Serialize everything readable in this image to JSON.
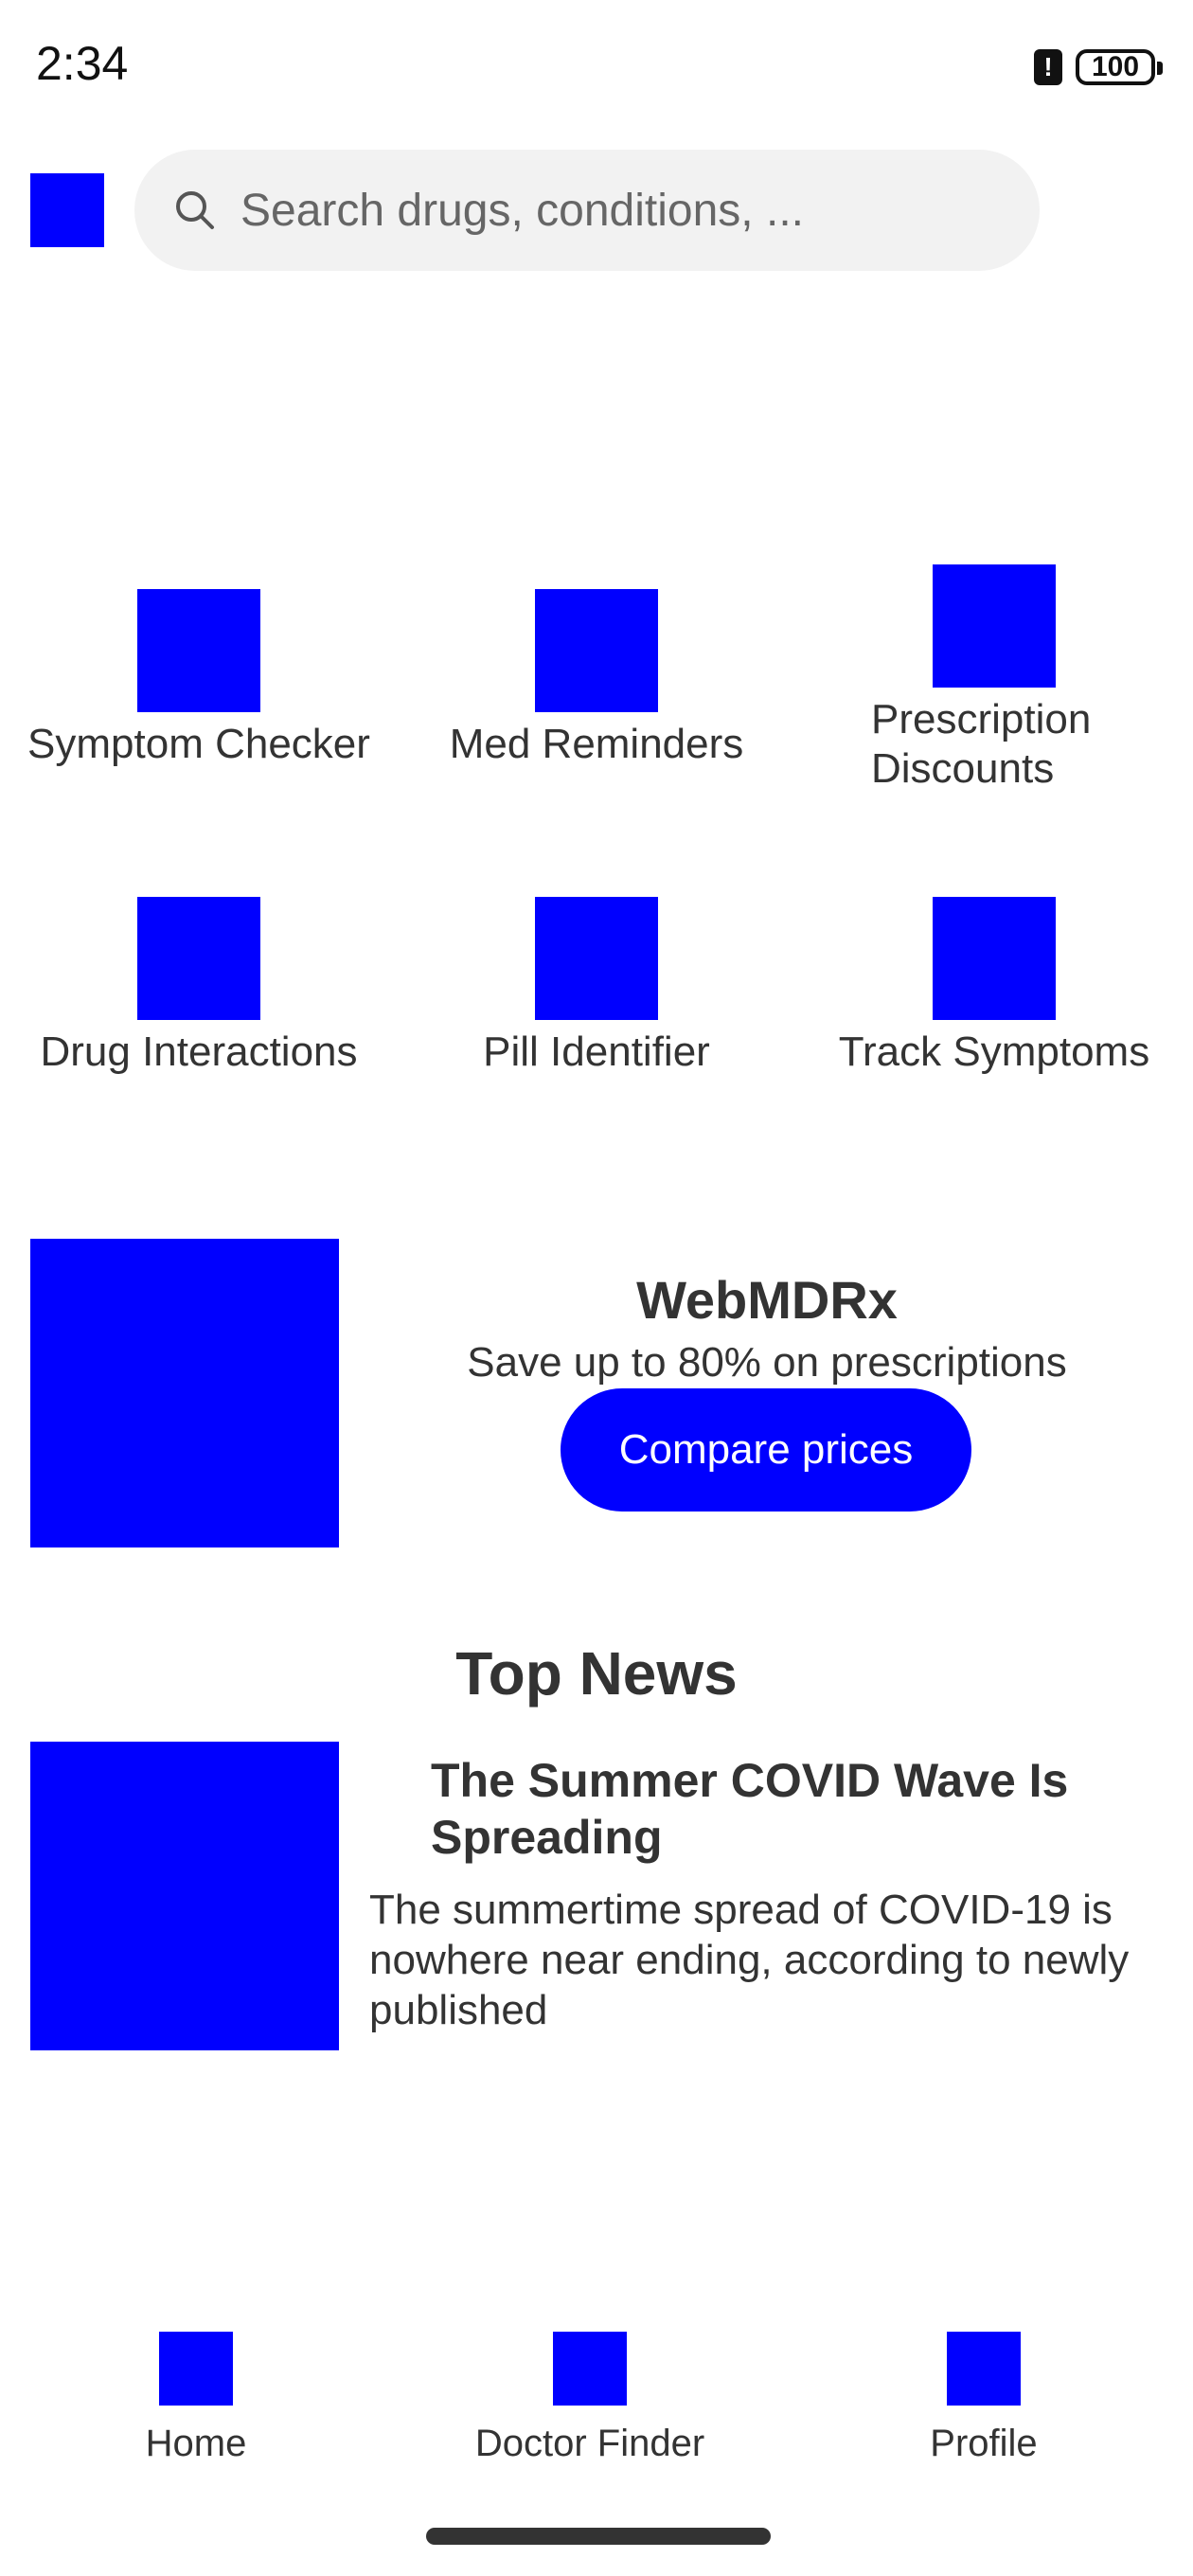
{
  "status_bar": {
    "time": "2:34",
    "alert_glyph": "!",
    "battery": "100"
  },
  "header": {
    "menu_icon": "menu-icon",
    "search_placeholder": "Search drugs, conditions, ..."
  },
  "quick_actions": [
    {
      "label": "Symptom Checker"
    },
    {
      "label": "Med Reminders"
    },
    {
      "label_line1": "Prescription",
      "label_line2": "Discounts"
    },
    {
      "label": "Drug Interactions"
    },
    {
      "label": "Pill Identifier"
    },
    {
      "label": "Track Symptoms"
    }
  ],
  "promo": {
    "title": "WebMDRx",
    "subtitle": "Save up to 80% on prescriptions",
    "button_label": "Compare prices"
  },
  "news": {
    "heading": "Top News",
    "article": {
      "title": "The Summer COVID Wave Is Spreading",
      "snippet": "The summertime spread of COVID-19 is nowhere near ending, according to newly published"
    }
  },
  "bottom_nav": [
    {
      "label": "Home"
    },
    {
      "label": "Doctor Finder"
    },
    {
      "label": "Profile"
    }
  ],
  "colors": {
    "accent": "#0000ff",
    "text": "#333333",
    "search_bg": "#f2f2f2"
  }
}
